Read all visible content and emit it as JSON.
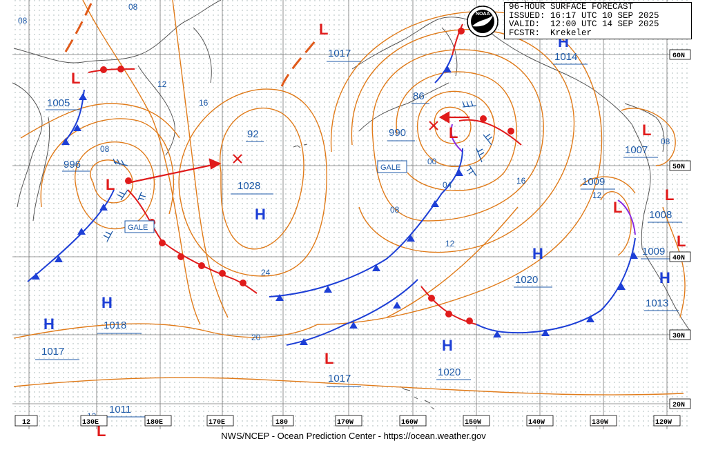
{
  "header": {
    "line1": "96-HOUR SURFACE FORECAST",
    "line2": "ISSUED: 16:17 UTC 10 SEP 2025",
    "line3": "VALID:  12:00 UTC 14 SEP 2025",
    "line4": "FCSTR:  Krekeler"
  },
  "logo_text": "NOAA",
  "footer": "NWS/NCEP - Ocean Prediction Center - https://ocean.weather.gov",
  "lat_labels": [
    "60N",
    "50N",
    "40N",
    "30N",
    "20N"
  ],
  "lon_labels": [
    "180E",
    "170E",
    "180",
    "170W",
    "160W",
    "150W",
    "140W",
    "130W",
    "120W"
  ],
  "lon_edge_labels": [
    "12",
    "130E"
  ],
  "pressure_labels": [
    "1005",
    "996",
    "1028",
    "92",
    "1017",
    "86",
    "990",
    "1014",
    "1007",
    "1009",
    "1008",
    "1009",
    "1013",
    "1020",
    "1018",
    "1017",
    "1017",
    "1020",
    "1011"
  ],
  "isobar_labels": [
    "08",
    "08",
    "12",
    "16",
    "08",
    "24",
    "20",
    "00",
    "04",
    "08",
    "12",
    "16",
    "12",
    "08",
    "12"
  ],
  "highs_lows": {
    "high": "H",
    "low": "L"
  },
  "gale_labels": [
    "GALE",
    "GALE"
  ],
  "colors": {
    "isobar": "#e07b1a",
    "cold": "#1d3fd6",
    "warm": "#e01b1b",
    "occluded": "#8a2be2",
    "label": "#1e5aa8",
    "land": "#555555"
  }
}
